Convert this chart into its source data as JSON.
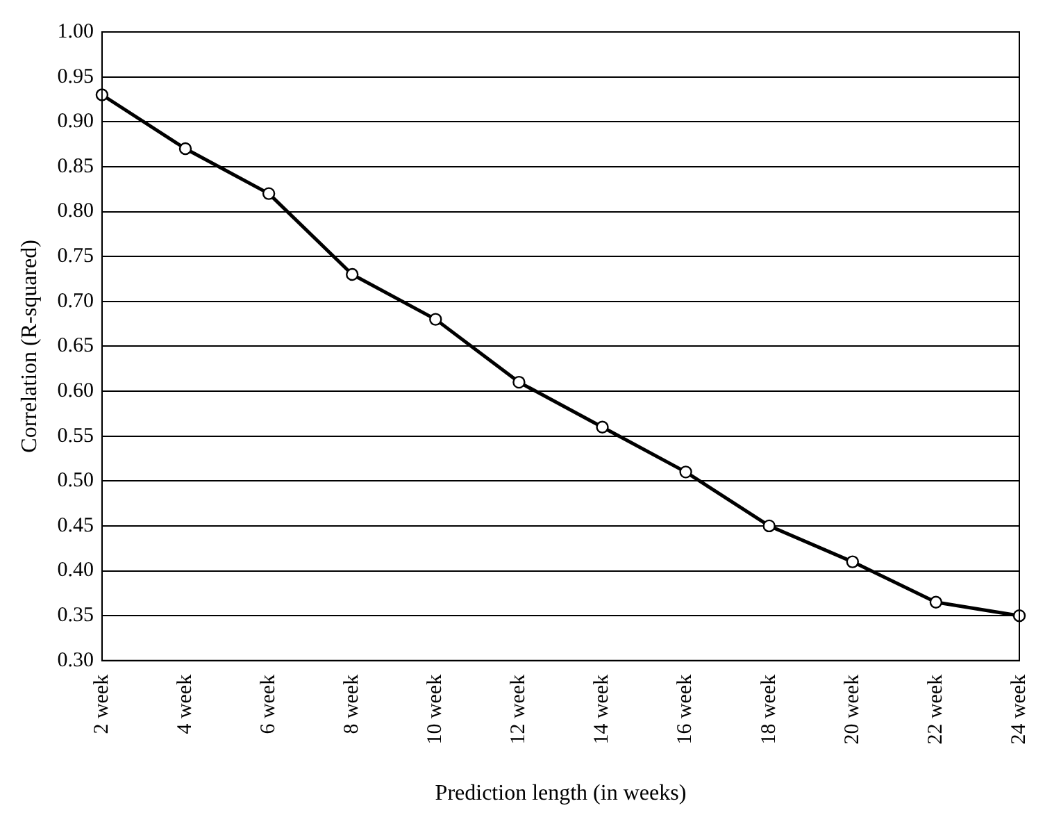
{
  "chart_data": {
    "type": "line",
    "xlabel": "Prediction length (in weeks)",
    "ylabel": "Correlation (R-squared)",
    "categories": [
      "2 week",
      "4 week",
      "6 week",
      "8 week",
      "10 week",
      "12 week",
      "14 week",
      "16 week",
      "18 week",
      "20 week",
      "22 week",
      "24 week"
    ],
    "series": [
      {
        "color": "#000000",
        "values": [
          0.93,
          0.87,
          0.82,
          0.73,
          0.68,
          0.61,
          0.56,
          0.51,
          0.45,
          0.41,
          0.365,
          0.35
        ]
      }
    ],
    "ylim": [
      0.3,
      1.0
    ],
    "yticks": [
      {
        "value": 0.3,
        "label": "0.30"
      },
      {
        "value": 0.35,
        "label": "0.35"
      },
      {
        "value": 0.4,
        "label": "0.40"
      },
      {
        "value": 0.45,
        "label": "0.45"
      },
      {
        "value": 0.5,
        "label": "0.50"
      },
      {
        "value": 0.55,
        "label": "0.55"
      },
      {
        "value": 0.6,
        "label": "0.60"
      },
      {
        "value": 0.65,
        "label": "0.65"
      },
      {
        "value": 0.7,
        "label": "0.70"
      },
      {
        "value": 0.75,
        "label": "0.75"
      },
      {
        "value": 0.8,
        "label": "0.80"
      },
      {
        "value": 0.85,
        "label": "0.85"
      },
      {
        "value": 0.9,
        "label": "0.90"
      },
      {
        "value": 0.95,
        "label": "0.95"
      },
      {
        "value": 1.0,
        "label": "1.00"
      }
    ],
    "grid": "y",
    "legend": false,
    "marker": "circle",
    "line_style": "solid"
  }
}
